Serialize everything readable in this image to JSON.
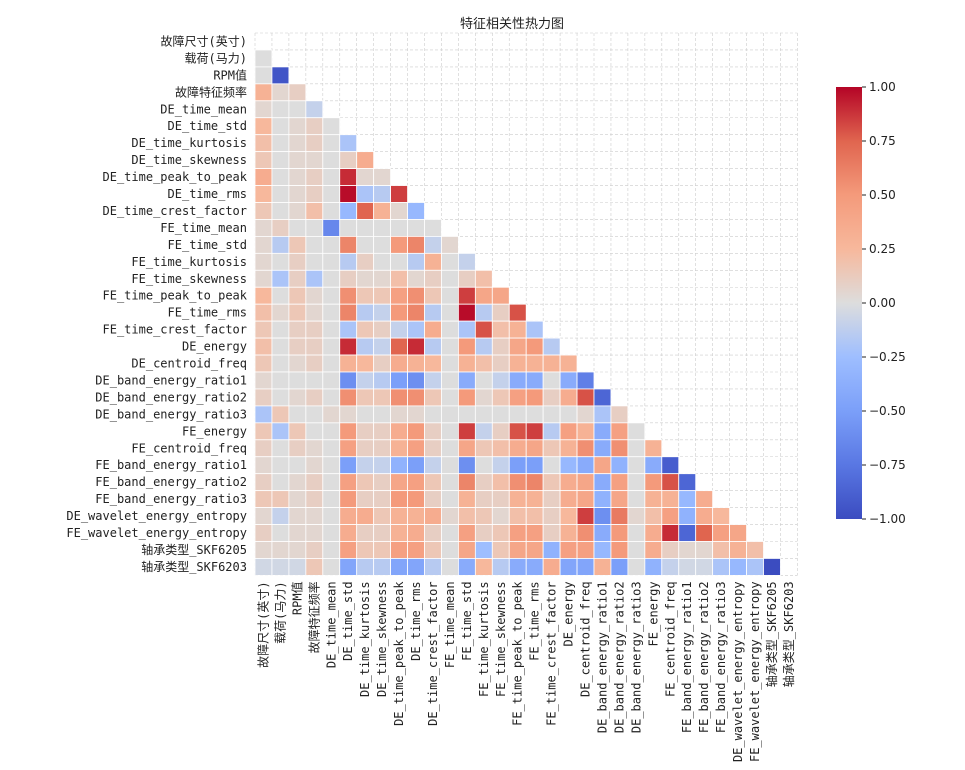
{
  "chart_data": {
    "type": "heatmap",
    "title": "特征相关性热力图",
    "mask": "upper-triangle",
    "features": [
      "故障尺寸(英寸)",
      "载荷(马力)",
      "RPM值",
      "故障特征频率",
      "DE_time_mean",
      "DE_time_std",
      "DE_time_kurtosis",
      "DE_time_skewness",
      "DE_time_peak_to_peak",
      "DE_time_rms",
      "DE_time_crest_factor",
      "FE_time_mean",
      "FE_time_std",
      "FE_time_kurtosis",
      "FE_time_skewness",
      "FE_time_peak_to_peak",
      "FE_time_rms",
      "FE_time_crest_factor",
      "DE_energy",
      "DE_centroid_freq",
      "DE_band_energy_ratio1",
      "DE_band_energy_ratio2",
      "DE_band_energy_ratio3",
      "FE_energy",
      "FE_centroid_freq",
      "FE_band_energy_ratio1",
      "FE_band_energy_ratio2",
      "FE_band_energy_ratio3",
      "DE_wavelet_energy_entropy",
      "FE_wavelet_energy_entropy",
      "轴承类型_SKF6205",
      "轴承类型_SKF6203"
    ],
    "correlations": [
      [],
      [
        0.0
      ],
      [
        0.0,
        -0.95
      ],
      [
        0.3,
        0.05,
        0.1
      ],
      [
        0.05,
        0.0,
        0.0,
        -0.1
      ],
      [
        0.25,
        0.0,
        0.05,
        0.1,
        0.0
      ],
      [
        0.2,
        0.0,
        0.05,
        0.1,
        0.0,
        -0.2
      ],
      [
        0.15,
        0.0,
        0.05,
        0.05,
        0.0,
        0.1,
        0.35
      ],
      [
        0.35,
        0.0,
        0.05,
        0.1,
        0.0,
        0.9,
        0.05,
        0.05
      ],
      [
        0.25,
        0.0,
        0.05,
        0.1,
        0.0,
        0.98,
        -0.2,
        -0.15,
        0.85
      ],
      [
        0.15,
        0.0,
        0.05,
        0.2,
        0.0,
        -0.3,
        0.75,
        0.3,
        0.05,
        -0.3
      ],
      [
        0.05,
        0.1,
        0.0,
        0.0,
        -0.65,
        0.0,
        0.0,
        0.0,
        0.0,
        0.0,
        0.0
      ],
      [
        0.05,
        -0.15,
        0.15,
        0.0,
        0.0,
        0.6,
        0.0,
        0.0,
        0.5,
        0.6,
        -0.1,
        0.05
      ],
      [
        0.05,
        0.0,
        0.1,
        0.0,
        0.0,
        -0.15,
        0.1,
        0.0,
        0.0,
        -0.15,
        0.3,
        0.0,
        -0.1
      ],
      [
        0.05,
        -0.2,
        0.1,
        -0.2,
        0.0,
        0.1,
        0.05,
        0.05,
        0.2,
        0.05,
        0.1,
        0.0,
        0.1,
        0.2
      ],
      [
        0.25,
        0.0,
        0.15,
        0.05,
        0.0,
        0.55,
        0.15,
        0.15,
        0.45,
        0.55,
        0.15,
        0.0,
        0.85,
        0.4,
        0.4
      ],
      [
        0.2,
        0.05,
        0.15,
        0.05,
        0.0,
        0.6,
        -0.15,
        -0.1,
        0.5,
        0.6,
        -0.15,
        0.0,
        0.98,
        -0.15,
        0.1,
        0.8
      ],
      [
        0.15,
        0.0,
        0.1,
        0.1,
        0.0,
        -0.2,
        0.15,
        0.1,
        -0.1,
        -0.2,
        0.35,
        0.0,
        -0.2,
        0.8,
        0.2,
        0.3,
        -0.2
      ],
      [
        0.2,
        0.0,
        0.1,
        0.1,
        0.0,
        0.9,
        -0.15,
        -0.1,
        0.75,
        0.9,
        -0.15,
        0.0,
        0.5,
        -0.15,
        0.1,
        0.4,
        0.5,
        -0.15
      ],
      [
        0.15,
        0.0,
        0.05,
        0.1,
        0.0,
        0.3,
        0.25,
        0.1,
        0.35,
        0.3,
        0.25,
        0.0,
        0.3,
        0.2,
        0.1,
        0.3,
        0.3,
        0.3,
        0.3
      ],
      [
        0.05,
        0.0,
        0.0,
        0.0,
        0.0,
        -0.6,
        -0.1,
        -0.15,
        -0.5,
        -0.6,
        -0.1,
        0.0,
        -0.4,
        0.0,
        -0.1,
        -0.4,
        -0.4,
        0.0,
        -0.4,
        -0.7
      ],
      [
        0.1,
        0.0,
        0.05,
        0.1,
        0.0,
        0.55,
        0.15,
        0.15,
        0.55,
        0.55,
        0.15,
        0.0,
        0.5,
        0.05,
        0.15,
        0.45,
        0.5,
        0.1,
        0.35,
        0.8,
        -0.85
      ],
      [
        -0.2,
        0.15,
        0.0,
        0.0,
        0.05,
        0.05,
        0.0,
        0.0,
        0.05,
        0.05,
        0.0,
        0.0,
        0.0,
        0.0,
        0.0,
        0.0,
        0.0,
        0.0,
        0.0,
        0.05,
        -0.2,
        0.1
      ],
      [
        0.15,
        -0.2,
        0.15,
        0.0,
        0.0,
        0.5,
        0.1,
        0.1,
        0.35,
        0.5,
        0.1,
        0.0,
        0.85,
        -0.1,
        0.1,
        0.8,
        0.85,
        -0.15,
        0.45,
        0.3,
        -0.4,
        0.45,
        0.0
      ],
      [
        0.1,
        0.0,
        0.1,
        0.05,
        0.0,
        0.45,
        0.1,
        0.1,
        0.3,
        0.45,
        0.1,
        0.0,
        0.4,
        0.15,
        0.2,
        0.35,
        0.4,
        0.15,
        0.3,
        0.55,
        -0.4,
        0.55,
        0.0,
        0.3
      ],
      [
        0.05,
        0.0,
        0.0,
        0.05,
        0.0,
        -0.5,
        -0.1,
        -0.1,
        -0.35,
        -0.5,
        -0.1,
        0.0,
        -0.6,
        0.0,
        -0.1,
        -0.5,
        -0.5,
        0.0,
        -0.3,
        -0.4,
        0.4,
        -0.35,
        0.0,
        -0.4,
        -0.9
      ],
      [
        0.1,
        0.0,
        0.05,
        0.1,
        0.0,
        0.45,
        0.15,
        0.1,
        0.4,
        0.45,
        0.15,
        0.0,
        0.6,
        0.1,
        0.2,
        0.55,
        0.6,
        0.15,
        0.35,
        0.4,
        -0.4,
        0.45,
        0.0,
        0.5,
        0.8,
        -0.85
      ],
      [
        0.15,
        0.15,
        0.05,
        0.1,
        0.0,
        0.5,
        0.1,
        0.1,
        0.5,
        0.5,
        0.1,
        0.0,
        0.3,
        0.1,
        0.1,
        0.3,
        0.3,
        0.1,
        0.35,
        0.4,
        -0.35,
        0.4,
        0.0,
        0.3,
        0.3,
        -0.3,
        0.35
      ],
      [
        0.05,
        -0.1,
        0.05,
        0.05,
        0.0,
        0.35,
        0.35,
        0.15,
        0.3,
        0.3,
        0.35,
        0.05,
        0.2,
        0.15,
        0.05,
        0.2,
        0.2,
        0.1,
        0.25,
        0.85,
        -0.6,
        0.65,
        0.05,
        0.2,
        0.45,
        -0.35,
        0.35,
        0.25
      ],
      [
        0.1,
        0.0,
        0.05,
        0.05,
        0.0,
        0.35,
        0.1,
        0.1,
        0.3,
        0.35,
        0.1,
        0.0,
        0.45,
        0.1,
        0.15,
        0.45,
        0.45,
        0.1,
        0.3,
        0.55,
        -0.4,
        0.5,
        0.0,
        0.35,
        0.9,
        -0.85,
        0.75,
        0.45,
        0.4
      ],
      [
        0.05,
        0.05,
        0.05,
        0.1,
        0.0,
        0.45,
        0.15,
        0.15,
        0.45,
        0.45,
        0.15,
        0.0,
        0.4,
        -0.25,
        0.15,
        0.4,
        0.4,
        -0.35,
        0.45,
        0.45,
        -0.3,
        0.5,
        0.0,
        0.35,
        0.1,
        0.05,
        0.05,
        0.2,
        0.3,
        0.2
      ],
      [
        -0.05,
        -0.05,
        -0.05,
        0.15,
        0.0,
        -0.45,
        -0.15,
        -0.15,
        -0.45,
        -0.45,
        -0.15,
        0.0,
        -0.4,
        0.25,
        -0.15,
        -0.4,
        -0.4,
        0.35,
        -0.45,
        -0.45,
        0.3,
        -0.5,
        0.0,
        -0.35,
        -0.1,
        -0.05,
        -0.05,
        -0.2,
        -0.3,
        -0.2,
        -1.0
      ]
    ],
    "colormap": "coolwarm",
    "vmin": -1.0,
    "vmax": 1.0,
    "colorbar_ticks": [
      "1.00",
      "0.75",
      "0.50",
      "0.25",
      "0.00",
      "−0.25",
      "−0.50",
      "−0.75",
      "−1.00"
    ],
    "colorbar_tick_values": [
      1.0,
      0.75,
      0.5,
      0.25,
      0.0,
      -0.25,
      -0.5,
      -0.75,
      -1.0
    ],
    "colors": {
      "low": "#3b4cc0",
      "mid": "#dddddd",
      "high": "#b40426",
      "grid": "#cccccc"
    }
  }
}
